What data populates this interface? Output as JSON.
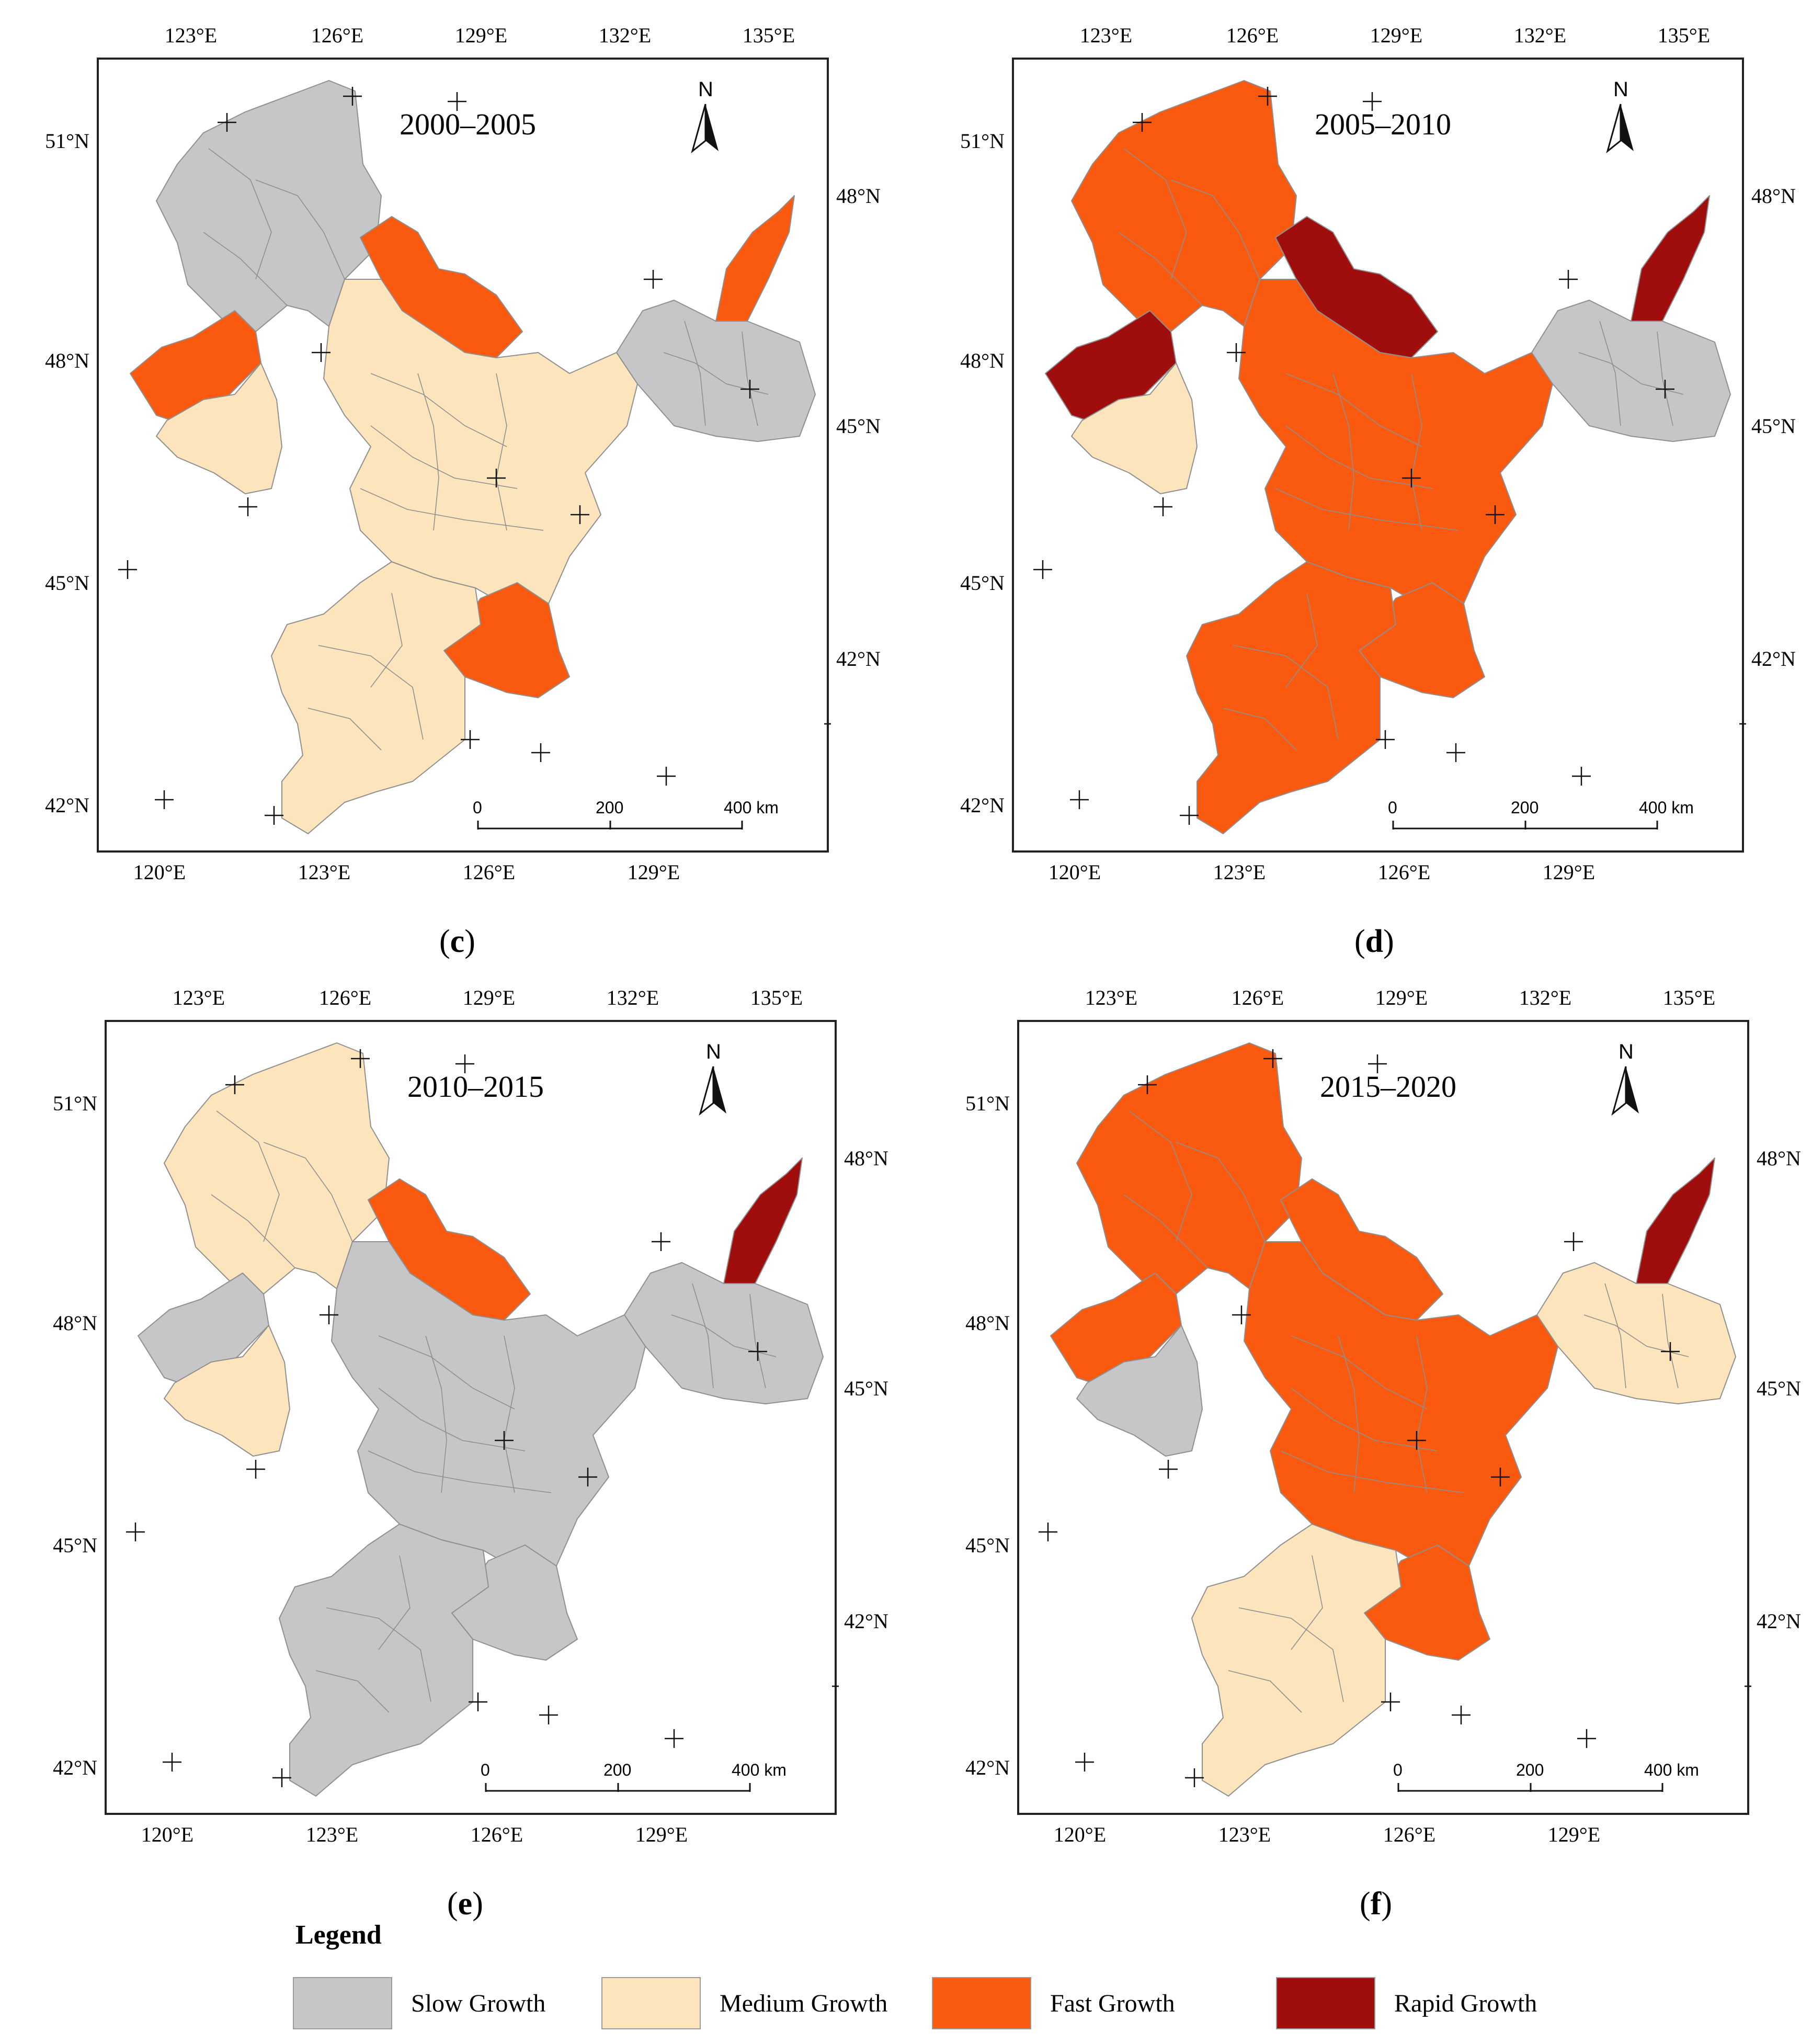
{
  "colors": {
    "slow": "#c6c6c8",
    "medium": "#fce5bd",
    "fast": "#fa5a0f",
    "rapid": "#a00d0d",
    "boundary": "#8f8f8f"
  },
  "top_axis_labels": [
    "123°E",
    "126°E",
    "129°E",
    "132°E",
    "135°E"
  ],
  "bottom_axis_labels": [
    "120°E",
    "123°E",
    "126°E",
    "129°E"
  ],
  "left_axis_labels": [
    "51°N",
    "48°N",
    "45°N",
    "42°N"
  ],
  "right_axis_labels": [
    "48°N",
    "45°N",
    "42°N"
  ],
  "north_arrow_label": "N",
  "scale_bar": {
    "labels": [
      "0",
      "200",
      "400 km"
    ]
  },
  "panels": [
    {
      "id": "c",
      "period": "2000–2005",
      "caption": {
        "open": "(",
        "letter": "c",
        "close": ")"
      },
      "region_classes": {
        "northwest": "slow",
        "northeast_block": "slow",
        "northeast_tip": "fast",
        "west_lobe": "fast",
        "center_north": "fast",
        "east_center": "fast",
        "center": "medium",
        "southwest": "medium",
        "south": "medium"
      }
    },
    {
      "id": "d",
      "period": "2005–2010",
      "caption": {
        "open": "(",
        "letter": "d",
        "close": ")"
      },
      "region_classes": {
        "northwest": "fast",
        "northeast_block": "slow",
        "northeast_tip": "rapid",
        "west_lobe": "rapid",
        "center_north": "rapid",
        "east_center": "fast",
        "center": "fast",
        "southwest": "medium",
        "south": "fast"
      }
    },
    {
      "id": "e",
      "period": "2010–2015",
      "caption": {
        "open": "(",
        "letter": "e",
        "close": ")"
      },
      "region_classes": {
        "northwest": "medium",
        "northeast_block": "slow",
        "northeast_tip": "rapid",
        "west_lobe": "slow",
        "center_north": "fast",
        "east_center": "slow",
        "center": "slow",
        "southwest": "medium",
        "south": "slow"
      }
    },
    {
      "id": "f",
      "period": "2015–2020",
      "caption": {
        "open": "(",
        "letter": "f",
        "close": ")"
      },
      "region_classes": {
        "northwest": "fast",
        "northeast_block": "medium",
        "northeast_tip": "rapid",
        "west_lobe": "fast",
        "center_north": "fast",
        "east_center": "fast",
        "center": "fast",
        "southwest": "slow",
        "south": "medium"
      }
    }
  ],
  "legend": {
    "title": "Legend",
    "items": [
      {
        "key": "slow",
        "label": "Slow Growth"
      },
      {
        "key": "medium",
        "label": "Medium Growth"
      },
      {
        "key": "fast",
        "label": "Fast Growth"
      },
      {
        "key": "rapid",
        "label": "Rapid Growth"
      }
    ]
  }
}
